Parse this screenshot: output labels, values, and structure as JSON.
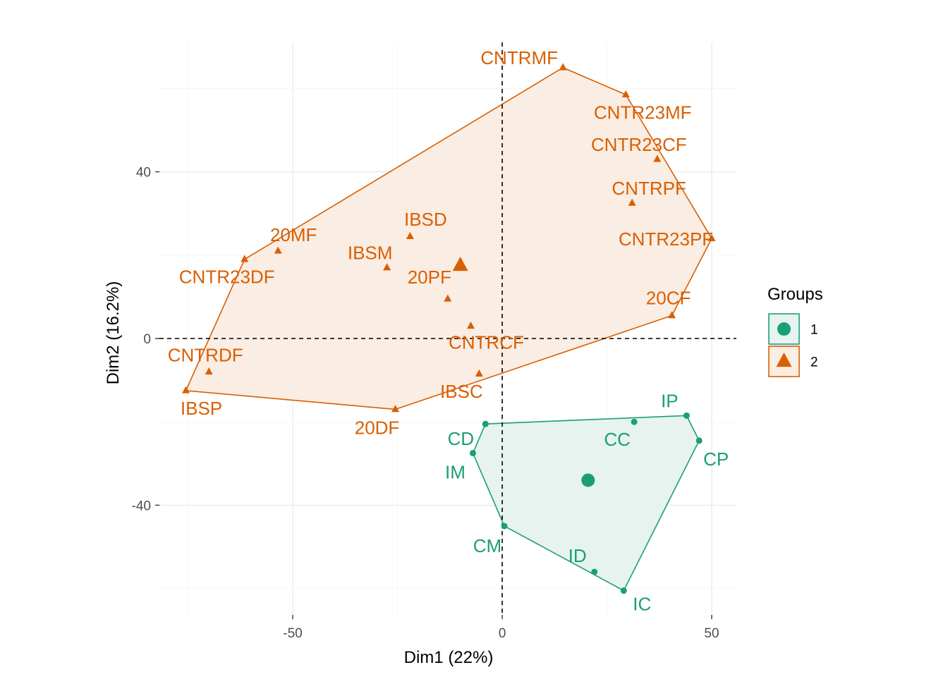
{
  "chart_data": {
    "type": "scatter",
    "xlabel": "Dim1 (22%)",
    "ylabel": "Dim2 (16.2%)",
    "xlim": [
      -82,
      56
    ],
    "ylim": [
      -66,
      71
    ],
    "xticks": [
      -50,
      0,
      50
    ],
    "yticks": [
      -40,
      0,
      40
    ],
    "xtick_labels": [
      "-50",
      "0",
      "50"
    ],
    "ytick_labels": [
      "-40",
      "0",
      "40"
    ],
    "grid": true,
    "reference_lines": {
      "x": 0,
      "y": 0,
      "style": "dashed"
    },
    "legend": {
      "title": "Groups",
      "placement": "right",
      "entries": [
        {
          "label": "1",
          "shape": "circle",
          "color": "#1B9E77"
        },
        {
          "label": "2",
          "shape": "triangle",
          "color": "#D95F02"
        }
      ]
    },
    "series": [
      {
        "name": "1",
        "color": "#1B9E77",
        "fill": "#E6F3EF",
        "marker": "circle",
        "centroid": {
          "x": 20.5,
          "y": -34
        },
        "hull": [
          "IP",
          "CP",
          "IC",
          "CM",
          "IM",
          "CD"
        ],
        "points": [
          {
            "label": "CD",
            "x": -4,
            "y": -20.5
          },
          {
            "label": "CC",
            "x": 31.5,
            "y": -20
          },
          {
            "label": "IP",
            "x": 44,
            "y": -18.5
          },
          {
            "label": "CP",
            "x": 47,
            "y": -24.5
          },
          {
            "label": "IM",
            "x": -7,
            "y": -27.5
          },
          {
            "label": "CM",
            "x": 0.5,
            "y": -45
          },
          {
            "label": "ID",
            "x": 22,
            "y": -56
          },
          {
            "label": "IC",
            "x": 29,
            "y": -60.5
          }
        ]
      },
      {
        "name": "2",
        "color": "#D95F02",
        "fill": "#FAEDE3",
        "marker": "triangle",
        "centroid": {
          "x": -10,
          "y": 17.5
        },
        "hull": [
          "CNTRMF",
          "CNTR23MF",
          "CNTR23PF",
          "20CF",
          "20DF",
          "IBSP",
          "CNTR23DF"
        ],
        "points": [
          {
            "label": "CNTRMF",
            "x": 14.5,
            "y": 65
          },
          {
            "label": "CNTR23MF",
            "x": 29.5,
            "y": 58.5
          },
          {
            "label": "CNTR23CF",
            "x": 37,
            "y": 43
          },
          {
            "label": "CNTRPF",
            "x": 31,
            "y": 32.5
          },
          {
            "label": "CNTR23PF",
            "x": 50,
            "y": 24
          },
          {
            "label": "20CF",
            "x": 40.5,
            "y": 5.5
          },
          {
            "label": "IBSD",
            "x": -22,
            "y": 24.5
          },
          {
            "label": "20MF",
            "x": -53.5,
            "y": 21
          },
          {
            "label": "CNTR23DF",
            "x": -61.5,
            "y": 19
          },
          {
            "label": "IBSM",
            "x": -27.5,
            "y": 17
          },
          {
            "label": "20PF",
            "x": -13,
            "y": 9.5
          },
          {
            "label": "CNTRCF",
            "x": -7.5,
            "y": 3
          },
          {
            "label": "CNTRDF",
            "x": -70,
            "y": -8
          },
          {
            "label": "IBSC",
            "x": -5.5,
            "y": -8.5
          },
          {
            "label": "IBSP",
            "x": -75.5,
            "y": -12.5
          },
          {
            "label": "20DF",
            "x": -25.5,
            "y": -17
          }
        ]
      }
    ]
  }
}
